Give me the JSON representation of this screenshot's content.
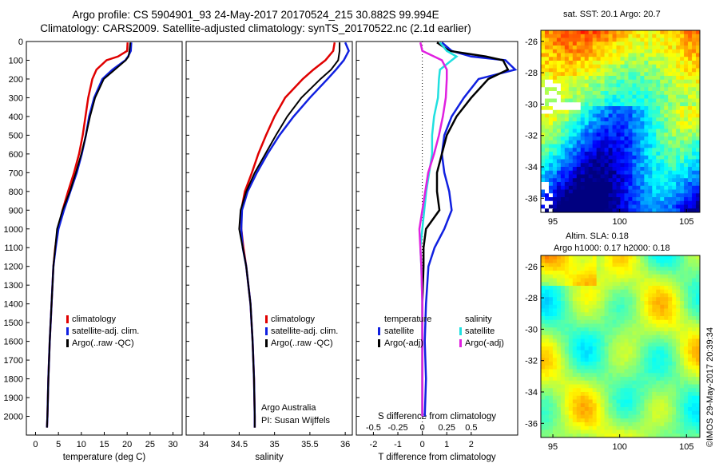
{
  "title_line1": "Argo profile: CS 5904901_93 24-May-2017 20170524_215 30.882S 99.994E",
  "title_line2": "Climatology: CARS2009. Satellite-adjusted climatology: synTS_20170522.nc (2.1d earlier)",
  "sst_caption": "sat. SST: 20.1  Argo: 20.7",
  "sla_caption1": "Altim. SLA: 0.18",
  "sla_caption2": "Argo h1000: 0.17 h2000: 0.18",
  "timestamp": "©IMOS 29-May-2017 20:39:34",
  "credit_line1": "Argo Australia",
  "credit_line2": "PI: Susan Wijffels",
  "colors": {
    "climatology": "#e00000",
    "satellite": "#1020e0",
    "argo": "#000000",
    "sal_sat": "#20e0e0",
    "sal_argo": "#e020e0"
  },
  "chart_data": [
    {
      "type": "line",
      "xlabel": "temperature (deg C)",
      "xticks": [
        0,
        5,
        10,
        15,
        20,
        25,
        30
      ],
      "ylim": [
        2100,
        0
      ],
      "yticks": [
        0,
        100,
        200,
        300,
        400,
        500,
        600,
        700,
        800,
        900,
        1000,
        1100,
        1200,
        1300,
        1400,
        1500,
        1600,
        1700,
        1800,
        1900,
        2000
      ],
      "legend": [
        "climatology",
        "satellite-adj. clim.",
        "Argo(..raw -QC)"
      ],
      "depth": [
        5,
        50,
        80,
        100,
        150,
        200,
        300,
        400,
        500,
        600,
        700,
        800,
        900,
        1000,
        1100,
        1200,
        1400,
        1600,
        1800,
        2000,
        2060
      ],
      "series": [
        {
          "name": "climatology",
          "values": [
            20.1,
            20.0,
            18.0,
            15.5,
            13.3,
            12.4,
            11.5,
            10.9,
            10.3,
            9.5,
            8.4,
            7.1,
            5.9,
            4.9,
            4.3,
            3.9,
            3.5,
            3.1,
            2.8,
            2.6,
            2.5
          ]
        },
        {
          "name": "satellite-adj. clim.",
          "values": [
            20.9,
            20.8,
            20.2,
            19.6,
            16.8,
            14.6,
            12.8,
            11.7,
            11.0,
            10.1,
            9.0,
            7.6,
            6.2,
            5.0,
            4.4,
            3.9,
            3.5,
            3.1,
            2.8,
            2.6,
            2.5
          ]
        },
        {
          "name": "Argo(..raw -QC)",
          "values": [
            20.7,
            20.5,
            20.3,
            19.7,
            17.3,
            14.9,
            13.0,
            11.9,
            11.0,
            10.0,
            8.8,
            7.5,
            5.9,
            4.7,
            4.3,
            3.9,
            3.5,
            3.1,
            2.8,
            2.6,
            2.5
          ]
        }
      ]
    },
    {
      "type": "line",
      "xlabel": "salinity",
      "xticks": [
        34,
        34.5,
        35,
        35.5,
        36
      ],
      "ylim": [
        2100,
        0
      ],
      "legend": [
        "climatology",
        "satellite-adj. clim.",
        "Argo(..raw -QC)"
      ],
      "depth": [
        5,
        50,
        100,
        150,
        200,
        300,
        400,
        500,
        600,
        700,
        800,
        900,
        1000,
        1100,
        1200,
        1300,
        1400,
        1600,
        1800,
        2000,
        2060
      ],
      "series": [
        {
          "name": "climatology",
          "values": [
            35.85,
            35.83,
            35.72,
            35.55,
            35.4,
            35.15,
            35.0,
            34.88,
            34.77,
            34.68,
            34.58,
            34.53,
            34.53,
            34.56,
            34.6,
            34.63,
            34.66,
            34.69,
            34.71,
            34.72,
            34.72
          ]
        },
        {
          "name": "satellite-adj. clim.",
          "values": [
            36.0,
            36.05,
            35.98,
            35.87,
            35.75,
            35.5,
            35.27,
            35.07,
            34.9,
            34.75,
            34.62,
            34.54,
            34.53,
            34.55,
            34.6,
            34.63,
            34.66,
            34.69,
            34.71,
            34.72,
            34.72
          ]
        },
        {
          "name": "Argo(..raw -QC)",
          "values": [
            35.92,
            35.92,
            35.9,
            35.8,
            35.65,
            35.38,
            35.18,
            35.02,
            34.87,
            34.72,
            34.6,
            34.52,
            34.5,
            34.55,
            34.6,
            34.63,
            34.66,
            34.69,
            34.71,
            34.72,
            34.72
          ]
        }
      ]
    },
    {
      "type": "line",
      "xlabel": "T difference from climatology",
      "x2label": "S difference from climatology",
      "xticks": [
        -2,
        -1,
        0,
        1,
        2
      ],
      "x2ticks": [
        -0.5,
        -0.25,
        0,
        0.25,
        0.5
      ],
      "ylim": [
        2100,
        0
      ],
      "legend_temperature": "temperature",
      "legend_salinity": "salinity",
      "legend": [
        "satellite",
        "Argo(-adj)",
        "satellite",
        "Argo(-adj)"
      ],
      "depth": [
        5,
        50,
        80,
        100,
        150,
        200,
        300,
        400,
        500,
        600,
        700,
        800,
        900,
        1000,
        1100,
        1200,
        1400,
        1600,
        1800,
        2000
      ],
      "series": [
        {
          "name": "temperature satellite",
          "values": [
            0.8,
            1.2,
            2.0,
            3.4,
            3.8,
            2.3,
            1.7,
            1.2,
            0.9,
            0.8,
            0.9,
            1.1,
            1.2,
            0.9,
            0.5,
            0.25,
            0.15,
            0.1,
            0.15,
            0.1
          ]
        },
        {
          "name": "temperature Argo(-adj)",
          "values": [
            0.6,
            1.1,
            2.6,
            3.3,
            3.5,
            2.7,
            2.0,
            1.4,
            1.0,
            0.8,
            0.6,
            0.6,
            0.7,
            0.15,
            0.05,
            0.05,
            0.0,
            0.0,
            0.0,
            0.0
          ]
        },
        {
          "name": "salinity satellite",
          "values": [
            0.18,
            0.25,
            0.35,
            0.3,
            0.18,
            0.17,
            0.16,
            0.12,
            0.1,
            0.1,
            0.07,
            0.04,
            0.02,
            0.0,
            -0.02,
            -0.01,
            0.0,
            0.0,
            0.0,
            0.0
          ]
        },
        {
          "name": "salinity Argo(-adj)",
          "values": [
            -0.02,
            0.0,
            0.12,
            0.2,
            0.25,
            0.25,
            0.24,
            0.21,
            0.17,
            0.12,
            0.06,
            0.03,
            0.0,
            -0.03,
            -0.02,
            -0.01,
            0.0,
            0.0,
            0.0,
            0.0
          ]
        }
      ]
    }
  ],
  "sst_map": {
    "type": "heatmap",
    "lat_ticks": [
      -26,
      -28,
      -30,
      -32,
      -34,
      -36
    ],
    "lon_ticks": [
      95,
      100,
      105
    ]
  },
  "sla_map": {
    "type": "heatmap",
    "lat_ticks": [
      -26,
      -28,
      -30,
      -32,
      -34,
      -36
    ],
    "lon_ticks": [
      95,
      100,
      105
    ]
  }
}
